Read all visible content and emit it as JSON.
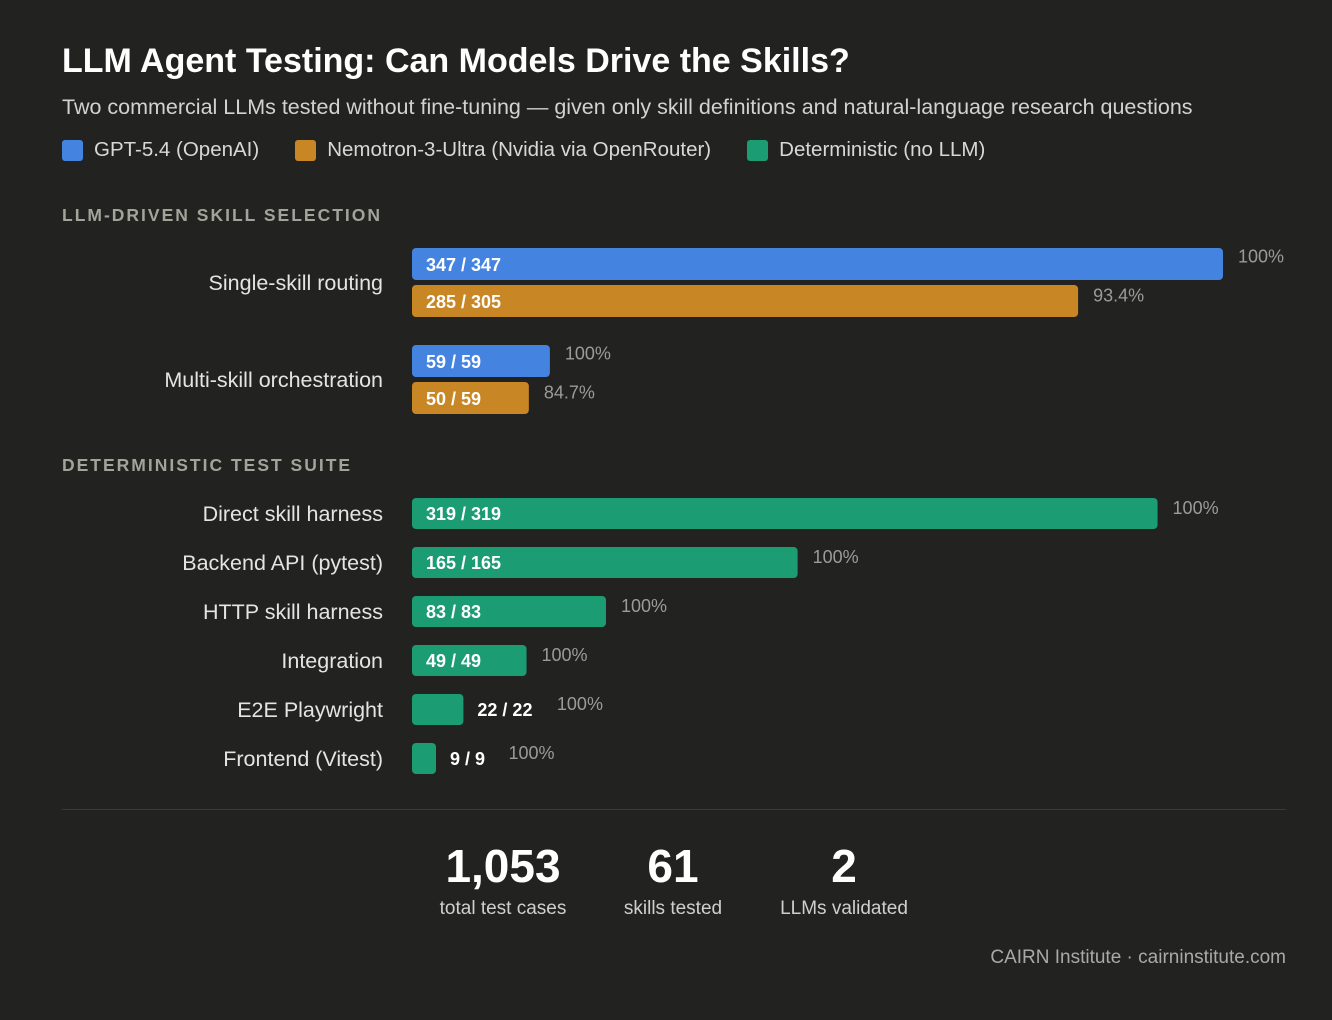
{
  "header": {
    "title": "LLM Agent Testing: Can Models Drive the Skills?",
    "subtitle": "Two commercial LLMs tested without fine-tuning — given only skill definitions and natural-language research questions"
  },
  "legend": [
    {
      "label": "GPT-5.4 (OpenAI)",
      "color": "#4583e0"
    },
    {
      "label": "Nemotron-3-Ultra (Nvidia via OpenRouter)",
      "color": "#c98625"
    },
    {
      "label": "Deterministic (no LLM)",
      "color": "#1b9c72"
    }
  ],
  "sections": {
    "llm": "LLM-DRIVEN SKILL SELECTION",
    "deterministic": "DETERMINISTIC TEST SUITE"
  },
  "chart_data": {
    "type": "bar",
    "orientation": "horizontal",
    "title": "LLM Agent Testing: Can Models Drive the Skills?",
    "llm_groups": [
      {
        "category": "Single-skill routing",
        "bars": [
          {
            "series": "GPT-5.4 (OpenAI)",
            "passed": 347,
            "total": 347,
            "label": "347 / 347",
            "pct_label": "100%",
            "color": "#4583e0"
          },
          {
            "series": "Nemotron-3-Ultra (Nvidia via OpenRouter)",
            "passed": 285,
            "total": 305,
            "label": "285 / 305",
            "pct_label": "93.4%",
            "color": "#c98625"
          }
        ]
      },
      {
        "category": "Multi-skill orchestration",
        "bars": [
          {
            "series": "GPT-5.4 (OpenAI)",
            "passed": 59,
            "total": 59,
            "label": "59 / 59",
            "pct_label": "100%",
            "color": "#4583e0"
          },
          {
            "series": "Nemotron-3-Ultra (Nvidia via OpenRouter)",
            "passed": 50,
            "total": 59,
            "label": "50 / 59",
            "pct_label": "84.7%",
            "color": "#c98625"
          }
        ]
      }
    ],
    "deterministic_rows": [
      {
        "category": "Direct skill harness",
        "passed": 319,
        "total": 319,
        "label": "319 / 319",
        "pct_label": "100%",
        "color": "#1b9c72"
      },
      {
        "category": "Backend API (pytest)",
        "passed": 165,
        "total": 165,
        "label": "165 / 165",
        "pct_label": "100%",
        "color": "#1b9c72"
      },
      {
        "category": "HTTP skill harness",
        "passed": 83,
        "total": 83,
        "label": "83 / 83",
        "pct_label": "100%",
        "color": "#1b9c72"
      },
      {
        "category": "Integration",
        "passed": 49,
        "total": 49,
        "label": "49 / 49",
        "pct_label": "100%",
        "color": "#1b9c72"
      },
      {
        "category": "E2E Playwright",
        "passed": 22,
        "total": 22,
        "label": "22 / 22",
        "pct_label": "100%",
        "color": "#1b9c72"
      },
      {
        "category": "Frontend (Vitest)",
        "passed": 9,
        "total": 9,
        "label": "9 / 9",
        "pct_label": "100%",
        "color": "#1b9c72"
      }
    ]
  },
  "stats": [
    {
      "value": "1,053",
      "caption": "total test cases"
    },
    {
      "value": "61",
      "caption": "skills tested"
    },
    {
      "value": "2",
      "caption": "LLMs validated"
    }
  ],
  "footer": "CAIRN Institute · cairninstitute.com"
}
